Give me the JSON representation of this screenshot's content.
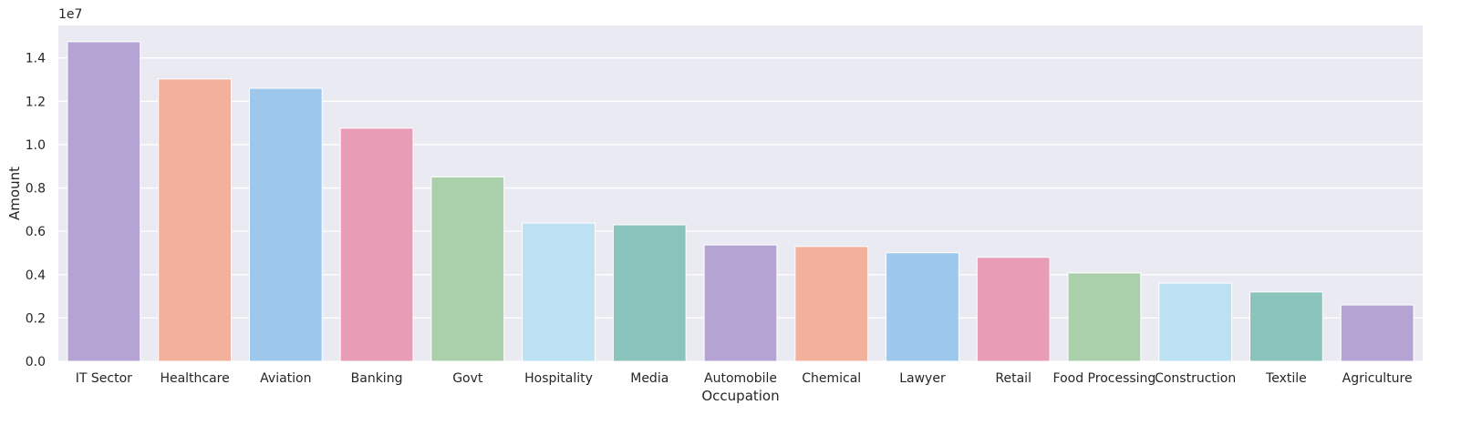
{
  "chart_data": {
    "type": "bar",
    "categories": [
      "IT Sector",
      "Healthcare",
      "Aviation",
      "Banking",
      "Govt",
      "Hospitality",
      "Media",
      "Automobile",
      "Chemical",
      "Lawyer",
      "Retail",
      "Food Processing",
      "Construction",
      "Textile",
      "Agriculture"
    ],
    "values": [
      14750000,
      13030000,
      12600000,
      10760000,
      8510000,
      6380000,
      6300000,
      5370000,
      5300000,
      5010000,
      4800000,
      4080000,
      3610000,
      3200000,
      2600000
    ],
    "xlabel": "Occupation",
    "ylabel": "Amount",
    "offset_text": "1e7",
    "ylim": [
      0,
      15500000
    ],
    "yticks": [
      0,
      2000000,
      4000000,
      6000000,
      8000000,
      10000000,
      12000000,
      14000000
    ],
    "ytick_labels": [
      "0.0",
      "0.2",
      "0.4",
      "0.6",
      "0.8",
      "1.0",
      "1.2",
      "1.4"
    ],
    "grid": true,
    "background": "#eaeaf2",
    "colors": [
      "#b5a3d3",
      "#f2b19d",
      "#9dc8ec",
      "#e89cb5",
      "#aad0ab",
      "#bbe1f3",
      "#8bc3bd"
    ]
  }
}
